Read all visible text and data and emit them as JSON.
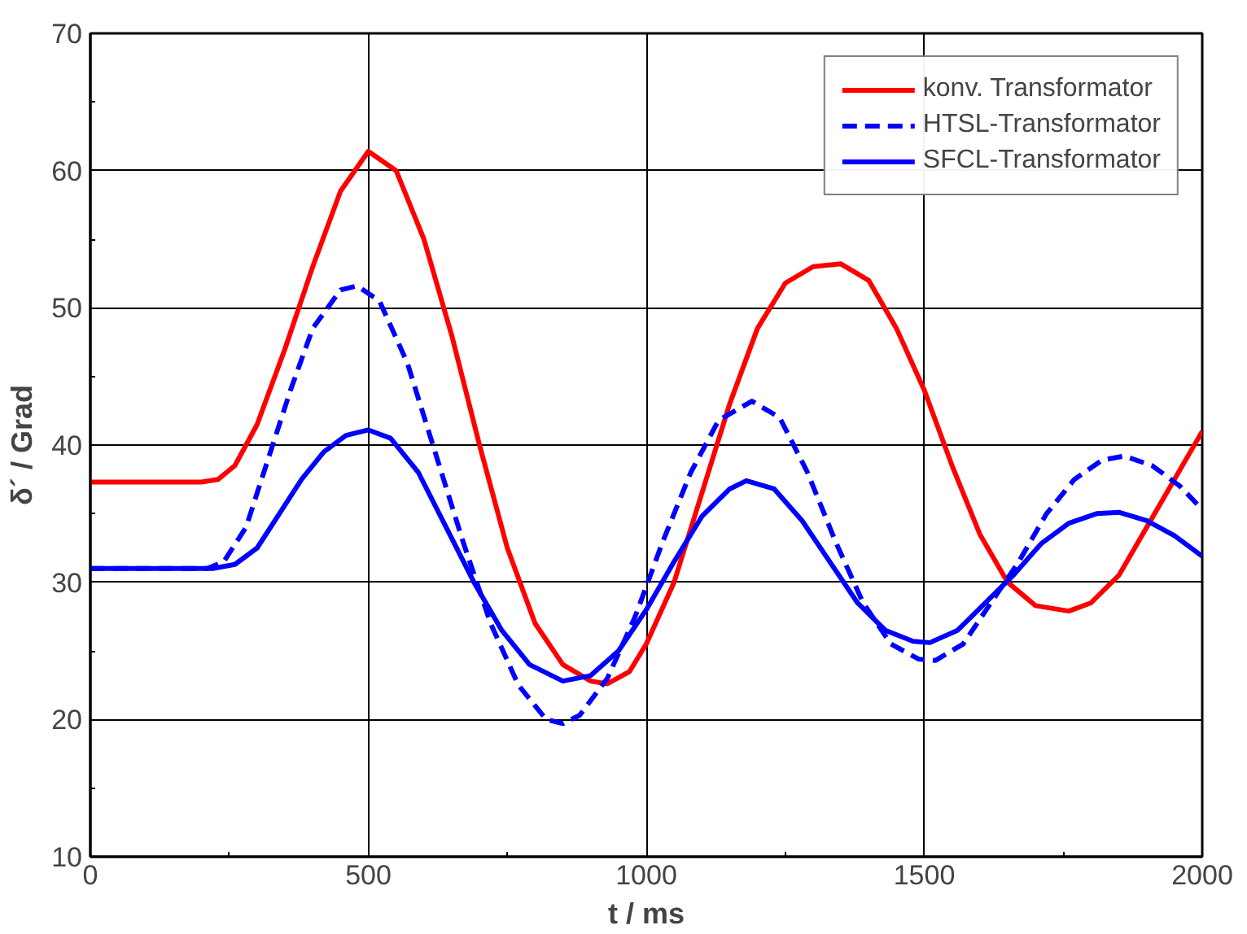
{
  "chart_data": {
    "type": "line",
    "xlabel": "t / ms",
    "ylabel": "δ´ / Grad",
    "xlim": [
      0,
      2000
    ],
    "ylim": [
      10,
      70
    ],
    "xticks": [
      0,
      500,
      1000,
      1500,
      2000
    ],
    "yticks": [
      10,
      20,
      30,
      40,
      50,
      60,
      70
    ],
    "grid": true,
    "legend": "top right",
    "marker": "none",
    "series": [
      {
        "name": "konv. Transformator",
        "color": "#ff0000",
        "line_style": "solid",
        "x": [
          0,
          200,
          230,
          260,
          300,
          350,
          400,
          450,
          500,
          550,
          600,
          650,
          700,
          750,
          800,
          850,
          900,
          930,
          970,
          1000,
          1050,
          1100,
          1150,
          1200,
          1250,
          1300,
          1350,
          1400,
          1450,
          1500,
          1550,
          1600,
          1650,
          1700,
          1760,
          1800,
          1850,
          1900,
          1950,
          2000
        ],
        "values": [
          37.3,
          37.3,
          37.5,
          38.5,
          41.5,
          47,
          53,
          58.5,
          61.4,
          60,
          55,
          48,
          40,
          32.5,
          27,
          24,
          22.8,
          22.6,
          23.5,
          25.5,
          30,
          36.5,
          43,
          48.5,
          51.8,
          53,
          53.2,
          52,
          48.5,
          44,
          38.5,
          33.5,
          30,
          28.3,
          27.9,
          28.5,
          30.5,
          34,
          37.5,
          41
        ]
      },
      {
        "name": "HTSL-Transformator",
        "color": "#0000ff",
        "line_style": "dashed",
        "x": [
          0,
          210,
          240,
          280,
          320,
          360,
          400,
          450,
          480,
          520,
          570,
          620,
          670,
          720,
          770,
          820,
          850,
          880,
          930,
          980,
          1030,
          1080,
          1130,
          1190,
          1240,
          1290,
          1340,
          1390,
          1440,
          1490,
          1520,
          1570,
          1620,
          1670,
          1720,
          1770,
          1820,
          1860,
          1910,
          1960,
          2000
        ],
        "values": [
          31,
          31,
          31.5,
          34,
          39,
          44,
          48.5,
          51.3,
          51.6,
          50.5,
          46,
          39.5,
          33,
          27,
          22.5,
          20,
          19.7,
          20.3,
          23,
          27.5,
          33,
          38,
          41.8,
          43.2,
          42,
          38,
          33,
          28.5,
          25.5,
          24.4,
          24.3,
          25.5,
          28.5,
          31.5,
          35,
          37.5,
          38.9,
          39.2,
          38.5,
          37,
          35.3
        ]
      },
      {
        "name": "SFCL-Transformator",
        "color": "#0000ff",
        "line_style": "solid",
        "x": [
          0,
          220,
          260,
          300,
          340,
          380,
          420,
          460,
          500,
          540,
          590,
          640,
          690,
          740,
          790,
          850,
          900,
          950,
          1000,
          1050,
          1100,
          1150,
          1180,
          1230,
          1280,
          1330,
          1380,
          1430,
          1480,
          1510,
          1560,
          1610,
          1660,
          1710,
          1760,
          1810,
          1850,
          1900,
          1950,
          2000
        ],
        "values": [
          31,
          31,
          31.3,
          32.5,
          35,
          37.5,
          39.5,
          40.7,
          41.1,
          40.5,
          38,
          34,
          30,
          26.5,
          24,
          22.8,
          23.2,
          25,
          28,
          31.5,
          34.8,
          36.8,
          37.4,
          36.8,
          34.5,
          31.5,
          28.5,
          26.5,
          25.7,
          25.6,
          26.5,
          28.5,
          30.5,
          32.8,
          34.3,
          35,
          35.1,
          34.5,
          33.4,
          31.9
        ]
      }
    ]
  }
}
